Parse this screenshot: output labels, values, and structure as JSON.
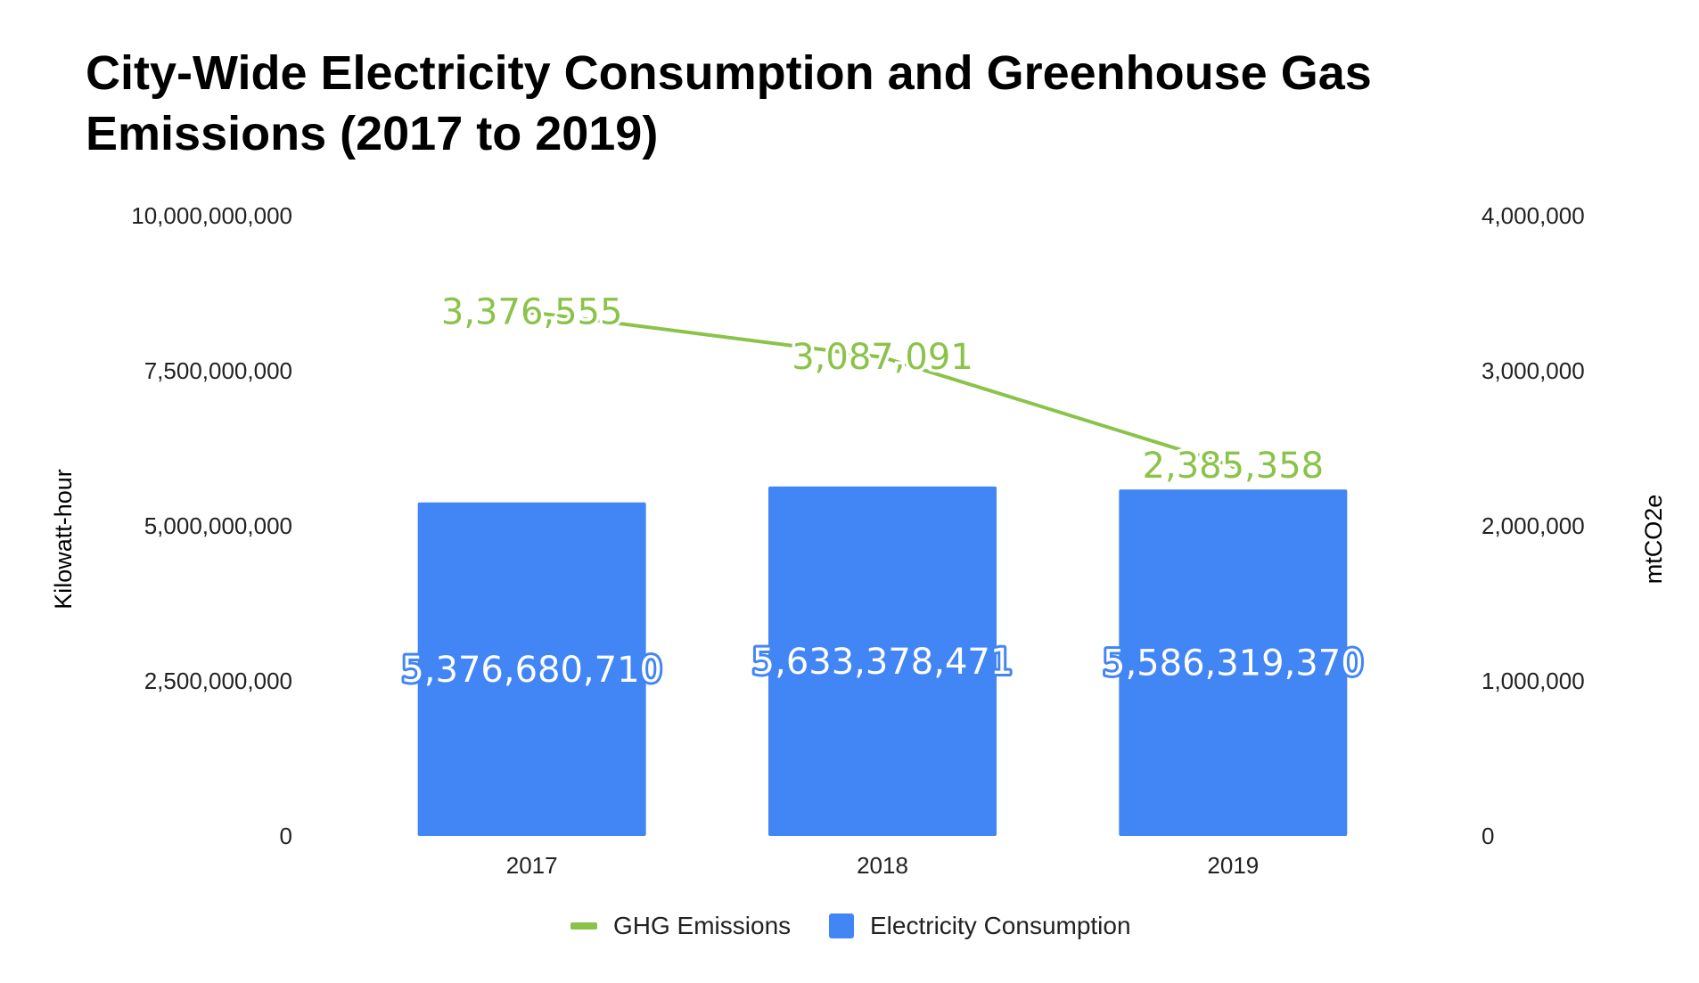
{
  "chart_data": {
    "type": "bar",
    "title": "City-Wide Electricity Consumption and Greenhouse Gas Emissions (2017 to 2019)",
    "categories": [
      "2017",
      "2018",
      "2019"
    ],
    "ylabel": "Kilowatt-hour",
    "y2label": "mtCO2e",
    "ylim": [
      0,
      10000000000
    ],
    "y2lim": [
      0,
      4000000
    ],
    "yticks": [
      "0",
      "2,500,000,000",
      "5,000,000,000",
      "7,500,000,000",
      "10,000,000,000"
    ],
    "y2ticks": [
      "0",
      "1,000,000",
      "2,000,000",
      "3,000,000",
      "4,000,000"
    ],
    "grid": false,
    "legend_position": "bottom",
    "series": [
      {
        "name": "Electricity Consumption",
        "type": "bar",
        "axis": "left",
        "color": "#4285f4",
        "values": [
          5376680710,
          5633378471,
          5586319370
        ],
        "labels": [
          "5,376,680,710",
          "5,633,378,471",
          "5,586,319,370"
        ]
      },
      {
        "name": "GHG Emissions",
        "type": "line",
        "axis": "right",
        "color": "#8bc34a",
        "values": [
          3376555,
          3087091,
          2385358
        ],
        "labels": [
          "3,376,555",
          "3,087,091",
          "2,385,358"
        ]
      }
    ]
  }
}
